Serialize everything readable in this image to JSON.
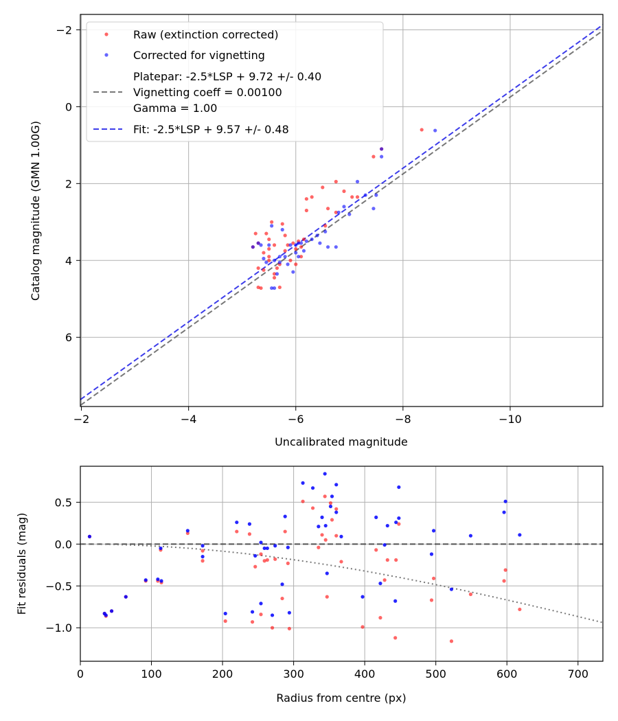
{
  "chart_data": [
    {
      "type": "scatter",
      "xlabel": "Uncalibrated magnitude",
      "ylabel": "Catalog magnitude (GMN 1.00G)",
      "xlim": [
        -1.98,
        -11.73
      ],
      "ylim": [
        7.8,
        -2.4
      ],
      "xticks": [
        -2,
        -4,
        -6,
        -8,
        -10
      ],
      "xtick_labels": [
        "−2",
        "−4",
        "−6",
        "−8",
        "−10"
      ],
      "yticks": [
        -2,
        0,
        2,
        4,
        6
      ],
      "ytick_labels": [
        "−2",
        "0",
        "2",
        "4",
        "6"
      ],
      "grid": true,
      "legend_position": "upper-left",
      "legend": {
        "raw": "Raw (extinction corrected)",
        "corrected": "Corrected for vignetting",
        "platepar_lines": [
          "Platepar: -2.5*LSP + 9.72 +/- 0.40",
          "Vignetting coeff = 0.00100",
          "Gamma = 1.00"
        ],
        "fit": "Fit: -2.5*LSP + 9.57 +/- 0.48"
      },
      "colors": {
        "raw": "#ff0000",
        "corrected": "#0000ff",
        "platepar": "#555555",
        "fit": "#1a1ae6"
      },
      "platepar_line": {
        "x": [
          -1.98,
          -11.73
        ],
        "y": [
          7.77,
          -1.98
        ]
      },
      "fit_line": {
        "x": [
          -1.98,
          -11.73
        ],
        "y": [
          7.62,
          -2.13
        ]
      },
      "series": [
        {
          "name": "Raw (extinction corrected)",
          "points": [
            [
              -5.2,
              3.65
            ],
            [
              -5.3,
              3.55
            ],
            [
              -5.4,
              3.8
            ],
            [
              -5.5,
              3.9
            ],
            [
              -5.6,
              3.6
            ],
            [
              -5.7,
              4.1
            ],
            [
              -5.5,
              3.45
            ],
            [
              -5.8,
              3.75
            ],
            [
              -5.3,
              4.7
            ],
            [
              -5.35,
              4.72
            ],
            [
              -5.55,
              3.0
            ],
            [
              -5.75,
              3.05
            ],
            [
              -5.4,
              4.25
            ],
            [
              -5.6,
              4.45
            ],
            [
              -5.7,
              4.7
            ],
            [
              -5.9,
              4.0
            ],
            [
              -6.0,
              3.7
            ],
            [
              -6.1,
              3.9
            ],
            [
              -5.95,
              3.55
            ],
            [
              -6.15,
              3.45
            ],
            [
              -5.5,
              4.0
            ],
            [
              -5.65,
              4.2
            ],
            [
              -5.25,
              3.3
            ],
            [
              -5.45,
              3.3
            ],
            [
              -6.05,
              3.5
            ],
            [
              -5.85,
              3.6
            ],
            [
              -6.2,
              2.7
            ],
            [
              -6.3,
              2.35
            ],
            [
              -6.2,
              2.4
            ],
            [
              -6.5,
              2.1
            ],
            [
              -6.55,
              3.1
            ],
            [
              -6.6,
              2.65
            ],
            [
              -6.75,
              1.95
            ],
            [
              -6.75,
              2.75
            ],
            [
              -6.9,
              2.2
            ],
            [
              -7.05,
              2.35
            ],
            [
              -7.15,
              2.35
            ],
            [
              -7.45,
              1.3
            ],
            [
              -7.6,
              1.1
            ],
            [
              -8.35,
              0.6
            ],
            [
              -5.3,
              4.2
            ],
            [
              -5.6,
              4.35
            ],
            [
              -5.8,
              3.35
            ],
            [
              -5.5,
              3.7
            ],
            [
              -6.0,
              4.1
            ],
            [
              -6.1,
              3.65
            ]
          ]
        },
        {
          "name": "Corrected for vignetting",
          "points": [
            [
              -5.2,
              3.65
            ],
            [
              -5.3,
              3.55
            ],
            [
              -5.4,
              3.95
            ],
            [
              -5.5,
              3.6
            ],
            [
              -5.6,
              4.0
            ],
            [
              -5.7,
              3.9
            ],
            [
              -5.55,
              3.1
            ],
            [
              -5.75,
              3.2
            ],
            [
              -5.55,
              4.72
            ],
            [
              -5.6,
              4.72
            ],
            [
              -5.65,
              4.35
            ],
            [
              -5.7,
              4.05
            ],
            [
              -5.9,
              3.6
            ],
            [
              -5.95,
              4.3
            ],
            [
              -6.0,
              3.8
            ],
            [
              -6.05,
              3.55
            ],
            [
              -6.15,
              3.75
            ],
            [
              -6.0,
              3.6
            ],
            [
              -6.05,
              3.9
            ],
            [
              -6.1,
              3.55
            ],
            [
              -5.8,
              3.9
            ],
            [
              -6.3,
              3.45
            ],
            [
              -6.45,
              3.55
            ],
            [
              -6.55,
              3.25
            ],
            [
              -6.6,
              3.65
            ],
            [
              -6.75,
              3.65
            ],
            [
              -6.8,
              2.75
            ],
            [
              -6.9,
              2.6
            ],
            [
              -7.0,
              2.8
            ],
            [
              -7.15,
              1.95
            ],
            [
              -7.3,
              2.3
            ],
            [
              -7.45,
              2.65
            ],
            [
              -7.5,
              2.3
            ],
            [
              -7.6,
              1.3
            ],
            [
              -7.6,
              1.1
            ],
            [
              -8.6,
              0.62
            ],
            [
              -6.4,
              3.35
            ],
            [
              -5.35,
              3.6
            ],
            [
              -5.45,
              4.05
            ],
            [
              -5.85,
              4.1
            ],
            [
              -6.2,
              3.5
            ]
          ]
        }
      ]
    },
    {
      "type": "scatter",
      "xlabel": "Radius from centre (px)",
      "ylabel": "Fit residuals (mag)",
      "xlim": [
        0,
        735
      ],
      "ylim": [
        -1.4,
        0.93
      ],
      "xticks": [
        0,
        100,
        200,
        300,
        400,
        500,
        600,
        700
      ],
      "xtick_labels": [
        "0",
        "100",
        "200",
        "300",
        "400",
        "500",
        "600",
        "700"
      ],
      "yticks": [
        0.5,
        0.0,
        -0.5,
        -1.0
      ],
      "ytick_labels": [
        "0.5",
        "0.0",
        "−0.5",
        "−1.0"
      ],
      "grid": true,
      "zero_line": 0.0,
      "vignetting_curve": {
        "coeff": 0.001,
        "offset": 0.0,
        "start_x": 0
      },
      "colors": {
        "raw": "#ff0000",
        "corrected": "#0000ff",
        "zero_line": "#444444",
        "curve": "#777777"
      },
      "series": [
        {
          "name": "Raw (extinction corrected)",
          "points": [
            [
              13,
              0.09
            ],
            [
              34,
              -0.83
            ],
            [
              36,
              -0.86
            ],
            [
              44,
              -0.8
            ],
            [
              64,
              -0.63
            ],
            [
              92,
              -0.44
            ],
            [
              109,
              -0.44
            ],
            [
              114,
              -0.46
            ],
            [
              113,
              -0.07
            ],
            [
              151,
              0.13
            ],
            [
              172,
              -0.2
            ],
            [
              172,
              -0.08
            ],
            [
              204,
              -0.92
            ],
            [
              220,
              0.15
            ],
            [
              238,
              0.12
            ],
            [
              242,
              -0.93
            ],
            [
              246,
              -0.27
            ],
            [
              254,
              -0.84
            ],
            [
              254,
              -0.12
            ],
            [
              259,
              -0.2
            ],
            [
              263,
              -0.19
            ],
            [
              270,
              -1.0
            ],
            [
              274,
              -0.18
            ],
            [
              284,
              -0.65
            ],
            [
              288,
              0.15
            ],
            [
              292,
              -0.23
            ],
            [
              294,
              -1.01
            ],
            [
              313,
              0.51
            ],
            [
              327,
              0.43
            ],
            [
              335,
              -0.04
            ],
            [
              340,
              0.11
            ],
            [
              344,
              0.57
            ],
            [
              345,
              0.05
            ],
            [
              347,
              -0.63
            ],
            [
              352,
              0.49
            ],
            [
              354,
              0.29
            ],
            [
              360,
              0.1
            ],
            [
              360,
              0.42
            ],
            [
              367,
              -0.21
            ],
            [
              397,
              -0.99
            ],
            [
              416,
              -0.07
            ],
            [
              422,
              -0.88
            ],
            [
              428,
              -0.43
            ],
            [
              432,
              -0.19
            ],
            [
              443,
              -1.12
            ],
            [
              444,
              -0.19
            ],
            [
              448,
              0.24
            ],
            [
              494,
              -0.67
            ],
            [
              497,
              -0.41
            ],
            [
              522,
              -1.16
            ],
            [
              549,
              -0.6
            ],
            [
              596,
              -0.44
            ],
            [
              598,
              -0.31
            ],
            [
              618,
              -0.78
            ]
          ]
        },
        {
          "name": "Corrected for vignetting",
          "points": [
            [
              13,
              0.09
            ],
            [
              34,
              -0.83
            ],
            [
              36,
              -0.85
            ],
            [
              44,
              -0.8
            ],
            [
              64,
              -0.63
            ],
            [
              92,
              -0.43
            ],
            [
              109,
              -0.42
            ],
            [
              114,
              -0.44
            ],
            [
              113,
              -0.05
            ],
            [
              151,
              0.16
            ],
            [
              172,
              -0.15
            ],
            [
              172,
              -0.02
            ],
            [
              204,
              -0.83
            ],
            [
              220,
              0.26
            ],
            [
              238,
              0.24
            ],
            [
              242,
              -0.81
            ],
            [
              246,
              -0.14
            ],
            [
              254,
              -0.71
            ],
            [
              254,
              0.02
            ],
            [
              259,
              -0.05
            ],
            [
              263,
              -0.05
            ],
            [
              270,
              -0.85
            ],
            [
              274,
              -0.02
            ],
            [
              284,
              -0.48
            ],
            [
              288,
              0.33
            ],
            [
              292,
              -0.04
            ],
            [
              294,
              -0.82
            ],
            [
              313,
              0.73
            ],
            [
              327,
              0.67
            ],
            [
              335,
              0.21
            ],
            [
              340,
              0.32
            ],
            [
              344,
              0.84
            ],
            [
              345,
              0.22
            ],
            [
              347,
              -0.35
            ],
            [
              352,
              0.45
            ],
            [
              354,
              0.57
            ],
            [
              360,
              0.38
            ],
            [
              360,
              0.71
            ],
            [
              367,
              0.09
            ],
            [
              397,
              -0.63
            ],
            [
              416,
              0.32
            ],
            [
              422,
              -0.47
            ],
            [
              428,
              -0.01
            ],
            [
              432,
              0.22
            ],
            [
              443,
              -0.68
            ],
            [
              444,
              0.26
            ],
            [
              448,
              0.68
            ],
            [
              448,
              0.31
            ],
            [
              494,
              -0.12
            ],
            [
              497,
              0.16
            ],
            [
              522,
              -0.54
            ],
            [
              549,
              0.1
            ],
            [
              596,
              0.38
            ],
            [
              598,
              0.51
            ],
            [
              618,
              0.11
            ]
          ]
        }
      ]
    }
  ]
}
